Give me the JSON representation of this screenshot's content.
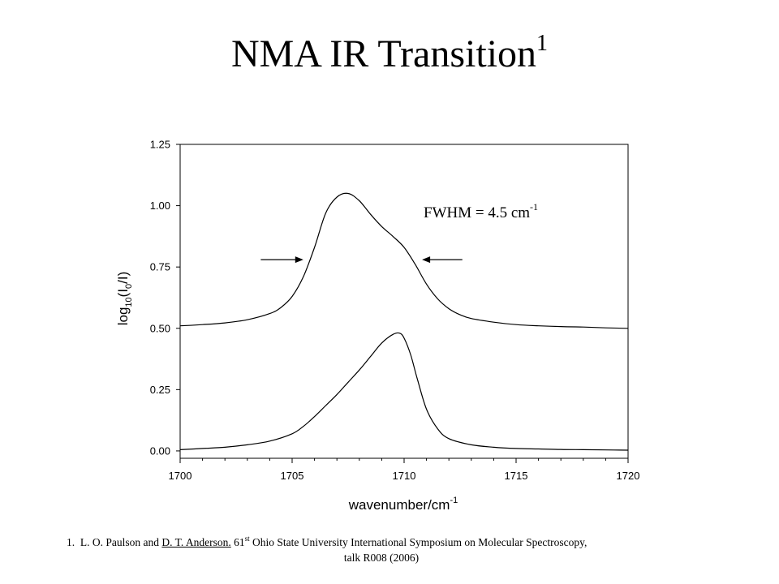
{
  "slide": {
    "title": "NMA IR Transition",
    "title_superscript": "1"
  },
  "citation": {
    "number": "1.",
    "authors_plain": "L. O. Paulson and",
    "author_underlined": "D. T. Anderson.",
    "ordinal": "61",
    "ordinal_suffix": "st",
    "venue": "Ohio State University International Symposium on Molecular Spectroscopy,",
    "line2": "talk R008 (2006)"
  },
  "chart_data": {
    "type": "line",
    "xlabel": "wavenumber/cm",
    "xlabel_superscript": "-1",
    "ylabel": "log",
    "ylabel_sub1": "10",
    "ylabel_mid": "(I",
    "ylabel_sub2": "0",
    "ylabel_end": "/I)",
    "xlim": [
      1700,
      1720
    ],
    "ylim": [
      -0.03,
      1.25
    ],
    "x_ticks": [
      1700,
      1705,
      1710,
      1715,
      1720
    ],
    "x_tick_labels": [
      "1700",
      "1705",
      "1710",
      "1715",
      "1720"
    ],
    "x_minor_step": 1,
    "y_ticks": [
      0.0,
      0.25,
      0.5,
      0.75,
      1.0,
      1.25
    ],
    "y_tick_labels": [
      "0.00",
      "0.25",
      "0.50",
      "0.75",
      "1.00",
      "1.25"
    ],
    "grid": false,
    "series": [
      {
        "x": [
          1700,
          1701,
          1702,
          1703,
          1704,
          1704.5,
          1705,
          1705.5,
          1706,
          1706.5,
          1707,
          1707.5,
          1708,
          1708.5,
          1709,
          1709.5,
          1710,
          1710.5,
          1711,
          1711.5,
          1712,
          1712.5,
          1713,
          1714,
          1715,
          1716,
          1717,
          1718,
          1719,
          1720
        ],
        "y": [
          0.51,
          0.515,
          0.522,
          0.535,
          0.56,
          0.585,
          0.63,
          0.71,
          0.83,
          0.97,
          1.035,
          1.05,
          1.02,
          0.965,
          0.915,
          0.875,
          0.83,
          0.76,
          0.68,
          0.62,
          0.58,
          0.555,
          0.54,
          0.525,
          0.515,
          0.51,
          0.507,
          0.505,
          0.502,
          0.5
        ]
      },
      {
        "x": [
          1700,
          1701,
          1702,
          1703,
          1704,
          1705,
          1705.5,
          1706,
          1706.5,
          1707,
          1707.5,
          1708,
          1708.5,
          1709,
          1709.5,
          1709.8,
          1710,
          1710.3,
          1710.6,
          1711,
          1711.5,
          1712,
          1713,
          1714,
          1715,
          1716,
          1717,
          1718,
          1719,
          1720
        ],
        "y": [
          0.005,
          0.01,
          0.015,
          0.025,
          0.04,
          0.07,
          0.1,
          0.14,
          0.185,
          0.23,
          0.28,
          0.33,
          0.385,
          0.44,
          0.475,
          0.48,
          0.46,
          0.39,
          0.29,
          0.17,
          0.09,
          0.05,
          0.025,
          0.015,
          0.01,
          0.008,
          0.006,
          0.005,
          0.004,
          0.003
        ]
      }
    ],
    "annotations": {
      "fwhm_text": "FWHM = 4.5 cm",
      "fwhm_superscript": "-1",
      "arrow_y": 0.78,
      "left_arrow_x": [
        1703.6,
        1705.5
      ],
      "right_arrow_x": [
        1710.8,
        1712.6
      ]
    }
  }
}
